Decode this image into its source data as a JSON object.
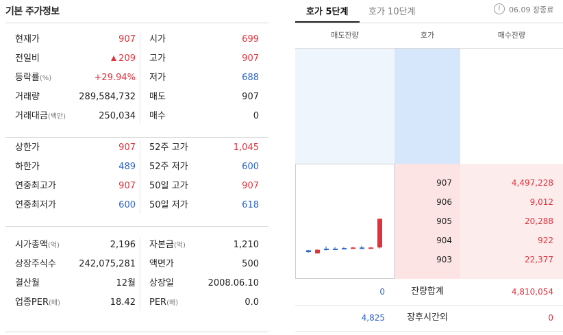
{
  "left": {
    "title": "기본 주가정보",
    "sections": [
      {
        "rows": [
          {
            "l1": "현재가",
            "l1s": "",
            "v1": "907",
            "c1": "red",
            "arrow": false,
            "l2": "시가",
            "l2s": "",
            "v2": "699",
            "c2": "red"
          },
          {
            "l1": "전일비",
            "l1s": "",
            "v1": "209",
            "c1": "red",
            "arrow": true,
            "l2": "고가",
            "l2s": "",
            "v2": "907",
            "c2": "red"
          },
          {
            "l1": "등락률",
            "l1s": "(%)",
            "v1": "+29.94%",
            "c1": "red",
            "arrow": false,
            "l2": "저가",
            "l2s": "",
            "v2": "688",
            "c2": "blue"
          },
          {
            "l1": "거래량",
            "l1s": "",
            "v1": "289,584,732",
            "c1": "",
            "arrow": false,
            "l2": "매도",
            "l2s": "",
            "v2": "907",
            "c2": ""
          },
          {
            "l1": "거래대금",
            "l1s": "(백만)",
            "v1": "250,034",
            "c1": "",
            "arrow": false,
            "l2": "매수",
            "l2s": "",
            "v2": "0",
            "c2": ""
          }
        ]
      },
      {
        "rows": [
          {
            "l1": "상한가",
            "l1s": "",
            "v1": "907",
            "c1": "red",
            "arrow": false,
            "l2": "52주 고가",
            "l2s": "",
            "v2": "1,045",
            "c2": "red"
          },
          {
            "l1": "하한가",
            "l1s": "",
            "v1": "489",
            "c1": "blue",
            "arrow": false,
            "l2": "52주 저가",
            "l2s": "",
            "v2": "600",
            "c2": "blue"
          },
          {
            "l1": "연중최고가",
            "l1s": "",
            "v1": "907",
            "c1": "red",
            "arrow": false,
            "l2": "50일 고가",
            "l2s": "",
            "v2": "907",
            "c2": "red"
          },
          {
            "l1": "연중최저가",
            "l1s": "",
            "v1": "600",
            "c1": "blue",
            "arrow": false,
            "l2": "50일 저가",
            "l2s": "",
            "v2": "618",
            "c2": "blue"
          }
        ]
      },
      {
        "rows": [
          {
            "l1": "시가총액",
            "l1s": "(억)",
            "v1": "2,196",
            "c1": "",
            "arrow": false,
            "l2": "자본금",
            "l2s": "(억)",
            "v2": "1,210",
            "c2": ""
          },
          {
            "l1": "상장주식수",
            "l1s": "",
            "v1": "242,075,281",
            "c1": "",
            "arrow": false,
            "l2": "액면가",
            "l2s": "",
            "v2": "500",
            "c2": ""
          },
          {
            "l1": "결산월",
            "l1s": "",
            "v1": "12월",
            "c1": "",
            "arrow": false,
            "l2": "상장일",
            "l2s": "",
            "v2": "2008.06.10",
            "c2": ""
          },
          {
            "l1": "업종PER",
            "l1s": "(배)",
            "v1": "18.42",
            "c1": "",
            "arrow": false,
            "l2": "PER",
            "l2s": "(배)",
            "v2": "0.0",
            "c2": ""
          }
        ]
      }
    ]
  },
  "right": {
    "tabs": [
      {
        "label": "호가 5단계",
        "active": true
      },
      {
        "label": "호가 10단계",
        "active": false
      }
    ],
    "info_icon_glyph": "i",
    "status": "06.09 장종료",
    "headers": [
      "매도잔량",
      "호가",
      "매수잔량"
    ],
    "bids": [
      {
        "price": "907",
        "qty": "4,497,228"
      },
      {
        "price": "906",
        "qty": "9,012"
      },
      {
        "price": "905",
        "qty": "20,288"
      },
      {
        "price": "904",
        "qty": "922"
      },
      {
        "price": "903",
        "qty": "22,377"
      }
    ],
    "summary": [
      {
        "left": "0",
        "label": "잔량합계",
        "right": "4,810,054"
      },
      {
        "left": "4,825",
        "label": "장후시간외",
        "right": "0"
      }
    ],
    "colors": {
      "up": "#e0323c",
      "down": "#2b62c8"
    }
  },
  "mini_chart": [
    {
      "open": 0.45,
      "close": 0.42,
      "high": 0.46,
      "low": 0.41,
      "up": false
    },
    {
      "open": 0.4,
      "close": 0.46,
      "high": 0.47,
      "low": 0.39,
      "up": true
    },
    {
      "open": 0.47,
      "close": 0.48,
      "high": 0.52,
      "low": 0.45,
      "up": false
    },
    {
      "open": 0.48,
      "close": 0.48,
      "high": 0.51,
      "low": 0.46,
      "up": false
    },
    {
      "open": 0.48,
      "close": 0.49,
      "high": 0.51,
      "low": 0.47,
      "up": false
    },
    {
      "open": 0.49,
      "close": 0.5,
      "high": 0.51,
      "low": 0.48,
      "up": true
    },
    {
      "open": 0.5,
      "close": 0.5,
      "high": 0.53,
      "low": 0.49,
      "up": false
    },
    {
      "open": 0.49,
      "close": 0.5,
      "high": 0.51,
      "low": 0.48,
      "up": true
    },
    {
      "open": 0.5,
      "close": 1.0,
      "high": 1.0,
      "low": 0.48,
      "up": true
    }
  ]
}
